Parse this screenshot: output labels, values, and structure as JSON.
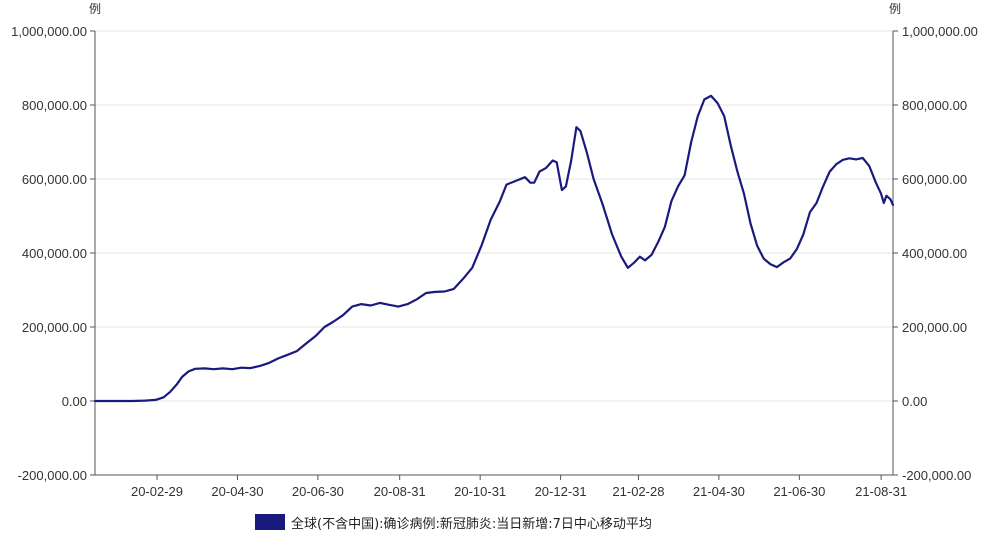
{
  "chart_data": {
    "type": "line",
    "title": "",
    "y_unit_left": "例",
    "y_unit_right": "例",
    "ylim": [
      -200000,
      1000000
    ],
    "y_ticks": [
      -200000,
      0,
      200000,
      400000,
      600000,
      800000,
      1000000
    ],
    "y_tick_labels": [
      "-200,000.00",
      "0.00",
      "200,000.00",
      "400,000.00",
      "600,000.00",
      "800,000.00",
      "1,000,000.00"
    ],
    "x_range": [
      "2020-01-13",
      "2021-09-09"
    ],
    "x_ticks": [
      "2020-02-29",
      "2020-04-30",
      "2020-06-30",
      "2020-08-31",
      "2020-10-31",
      "2020-12-31",
      "2021-02-28",
      "2021-04-30",
      "2021-06-30",
      "2021-08-31"
    ],
    "x_tick_labels": [
      "20-02-29",
      "20-04-30",
      "20-06-30",
      "20-08-31",
      "20-10-31",
      "20-12-31",
      "21-02-28",
      "21-04-30",
      "21-06-30",
      "21-08-31"
    ],
    "grid": true,
    "legend_position": "bottom",
    "series": [
      {
        "name": "全球(不含中国):确诊病例:新冠肺炎:当日新增:7日中心移动平均",
        "color": "#1a1a7e",
        "points": [
          [
            "2020-01-13",
            0
          ],
          [
            "2020-02-10",
            0
          ],
          [
            "2020-02-20",
            1000
          ],
          [
            "2020-02-28",
            3000
          ],
          [
            "2020-03-05",
            10000
          ],
          [
            "2020-03-10",
            25000
          ],
          [
            "2020-03-15",
            45000
          ],
          [
            "2020-03-19",
            65000
          ],
          [
            "2020-03-24",
            80000
          ],
          [
            "2020-03-29",
            87000
          ],
          [
            "2020-04-05",
            88000
          ],
          [
            "2020-04-12",
            86000
          ],
          [
            "2020-04-19",
            88000
          ],
          [
            "2020-04-26",
            86000
          ],
          [
            "2020-05-03",
            90000
          ],
          [
            "2020-05-10",
            89000
          ],
          [
            "2020-05-17",
            95000
          ],
          [
            "2020-05-24",
            103000
          ],
          [
            "2020-05-31",
            115000
          ],
          [
            "2020-06-07",
            125000
          ],
          [
            "2020-06-14",
            135000
          ],
          [
            "2020-06-21",
            155000
          ],
          [
            "2020-06-28",
            175000
          ],
          [
            "2020-07-05",
            200000
          ],
          [
            "2020-07-12",
            215000
          ],
          [
            "2020-07-19",
            232000
          ],
          [
            "2020-07-26",
            255000
          ],
          [
            "2020-08-02",
            262000
          ],
          [
            "2020-08-09",
            258000
          ],
          [
            "2020-08-16",
            265000
          ],
          [
            "2020-08-23",
            260000
          ],
          [
            "2020-08-30",
            255000
          ],
          [
            "2020-09-06",
            262000
          ],
          [
            "2020-09-13",
            275000
          ],
          [
            "2020-09-20",
            292000
          ],
          [
            "2020-09-27",
            295000
          ],
          [
            "2020-10-04",
            296000
          ],
          [
            "2020-10-11",
            303000
          ],
          [
            "2020-10-18",
            330000
          ],
          [
            "2020-10-25",
            360000
          ],
          [
            "2020-11-01",
            420000
          ],
          [
            "2020-11-08",
            490000
          ],
          [
            "2020-11-15",
            540000
          ],
          [
            "2020-11-20",
            585000
          ],
          [
            "2020-11-27",
            595000
          ],
          [
            "2020-12-04",
            605000
          ],
          [
            "2020-12-08",
            590000
          ],
          [
            "2020-12-11",
            590000
          ],
          [
            "2020-12-15",
            620000
          ],
          [
            "2020-12-20",
            630000
          ],
          [
            "2020-12-25",
            650000
          ],
          [
            "2020-12-28",
            645000
          ],
          [
            "2021-01-01",
            570000
          ],
          [
            "2021-01-04",
            580000
          ],
          [
            "2021-01-08",
            650000
          ],
          [
            "2021-01-12",
            740000
          ],
          [
            "2021-01-15",
            730000
          ],
          [
            "2021-01-20",
            670000
          ],
          [
            "2021-01-25",
            600000
          ],
          [
            "2021-02-01",
            530000
          ],
          [
            "2021-02-08",
            450000
          ],
          [
            "2021-02-15",
            390000
          ],
          [
            "2021-02-20",
            360000
          ],
          [
            "2021-02-25",
            375000
          ],
          [
            "2021-03-01",
            390000
          ],
          [
            "2021-03-05",
            380000
          ],
          [
            "2021-03-10",
            395000
          ],
          [
            "2021-03-15",
            430000
          ],
          [
            "2021-03-20",
            470000
          ],
          [
            "2021-03-25",
            540000
          ],
          [
            "2021-03-30",
            580000
          ],
          [
            "2021-04-04",
            610000
          ],
          [
            "2021-04-09",
            700000
          ],
          [
            "2021-04-14",
            770000
          ],
          [
            "2021-04-19",
            815000
          ],
          [
            "2021-04-24",
            825000
          ],
          [
            "2021-04-29",
            805000
          ],
          [
            "2021-05-04",
            770000
          ],
          [
            "2021-05-09",
            690000
          ],
          [
            "2021-05-14",
            620000
          ],
          [
            "2021-05-19",
            560000
          ],
          [
            "2021-05-24",
            480000
          ],
          [
            "2021-05-29",
            420000
          ],
          [
            "2021-06-03",
            385000
          ],
          [
            "2021-06-08",
            370000
          ],
          [
            "2021-06-13",
            362000
          ],
          [
            "2021-06-18",
            375000
          ],
          [
            "2021-06-23",
            385000
          ],
          [
            "2021-06-28",
            410000
          ],
          [
            "2021-07-03",
            450000
          ],
          [
            "2021-07-08",
            510000
          ],
          [
            "2021-07-13",
            535000
          ],
          [
            "2021-07-18",
            580000
          ],
          [
            "2021-07-23",
            620000
          ],
          [
            "2021-07-28",
            640000
          ],
          [
            "2021-08-02",
            652000
          ],
          [
            "2021-08-07",
            656000
          ],
          [
            "2021-08-12",
            653000
          ],
          [
            "2021-08-17",
            657000
          ],
          [
            "2021-08-22",
            635000
          ],
          [
            "2021-08-27",
            590000
          ],
          [
            "2021-08-31",
            560000
          ],
          [
            "2021-09-02",
            535000
          ],
          [
            "2021-09-04",
            555000
          ],
          [
            "2021-09-07",
            545000
          ],
          [
            "2021-09-09",
            530000
          ]
        ]
      }
    ]
  }
}
